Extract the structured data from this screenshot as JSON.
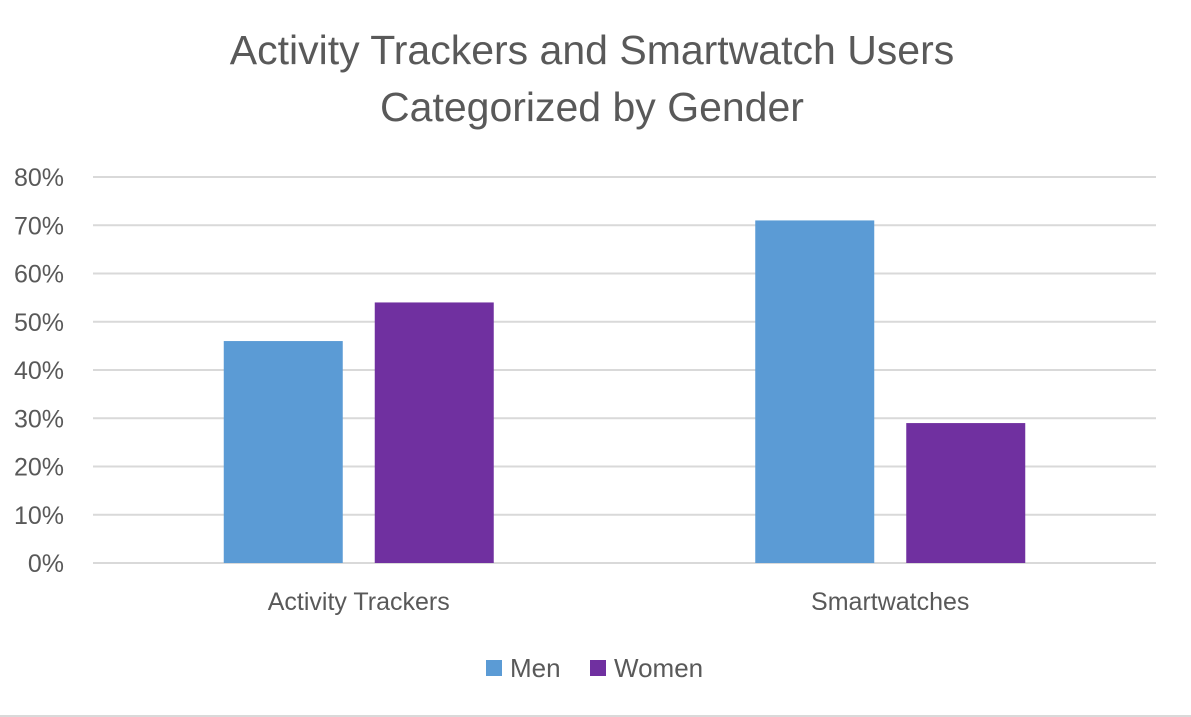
{
  "chart_data": {
    "type": "bar",
    "title": [
      "Activity Trackers and Smartwatch Users",
      "Categorized by Gender"
    ],
    "categories": [
      "Activity Trackers",
      "Smartwatches"
    ],
    "series": [
      {
        "name": "Men",
        "values": [
          46,
          71
        ],
        "color": "#5b9bd5"
      },
      {
        "name": "Women",
        "values": [
          54,
          29
        ],
        "color": "#7030a0"
      }
    ],
    "ylim": [
      0,
      80
    ],
    "yticks": [
      0,
      10,
      20,
      30,
      40,
      50,
      60,
      70,
      80
    ],
    "y_tick_format": "{v}%",
    "grid": true,
    "legend_position": "bottom",
    "colors": {
      "text": "#595959",
      "gridline": "#d9d9d9"
    }
  }
}
